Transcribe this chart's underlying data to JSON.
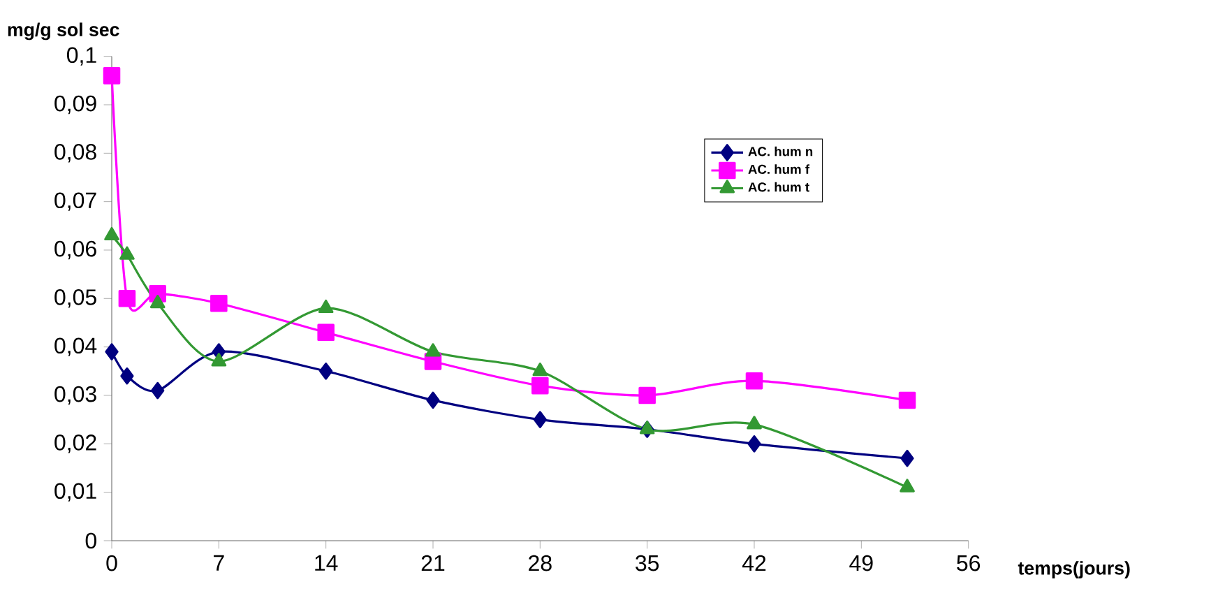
{
  "chart_data": {
    "type": "line",
    "xlabel": "temps(jours)",
    "ylabel": "mg/g sol sec",
    "xlim": [
      0,
      56
    ],
    "xticks": [
      0,
      7,
      14,
      21,
      28,
      35,
      42,
      49,
      56
    ],
    "ylim": [
      0,
      0.1
    ],
    "yticks": [
      {
        "value": 0,
        "label": "0"
      },
      {
        "value": 0.01,
        "label": "0,01"
      },
      {
        "value": 0.02,
        "label": "0,02"
      },
      {
        "value": 0.03,
        "label": "0,03"
      },
      {
        "value": 0.04,
        "label": "0,04"
      },
      {
        "value": 0.05,
        "label": "0,05"
      },
      {
        "value": 0.06,
        "label": "0,06"
      },
      {
        "value": 0.07,
        "label": "0,07"
      },
      {
        "value": 0.08,
        "label": "0,08"
      },
      {
        "value": 0.09,
        "label": "0,09"
      },
      {
        "value": 0.1,
        "label": "0,1"
      }
    ],
    "x": [
      0,
      1,
      3,
      7,
      14,
      21,
      28,
      35,
      42,
      52
    ],
    "series": [
      {
        "name": "AC. hum n",
        "color": "#000080",
        "marker": "diamond",
        "values": [
          0.039,
          0.034,
          0.031,
          0.039,
          0.035,
          0.029,
          0.025,
          0.023,
          0.02,
          0.017
        ]
      },
      {
        "name": "AC. hum f",
        "color": "#ff00ff",
        "marker": "square",
        "values": [
          0.096,
          0.05,
          0.051,
          0.049,
          0.043,
          0.037,
          0.032,
          0.03,
          0.033,
          0.029
        ]
      },
      {
        "name": "AC. hum t",
        "color": "#339933",
        "marker": "triangle",
        "values": [
          0.063,
          0.059,
          0.049,
          0.037,
          0.048,
          0.039,
          0.035,
          0.023,
          0.024,
          0.011
        ]
      }
    ],
    "grid": false,
    "legend": "top right",
    "line_style": "solid"
  }
}
